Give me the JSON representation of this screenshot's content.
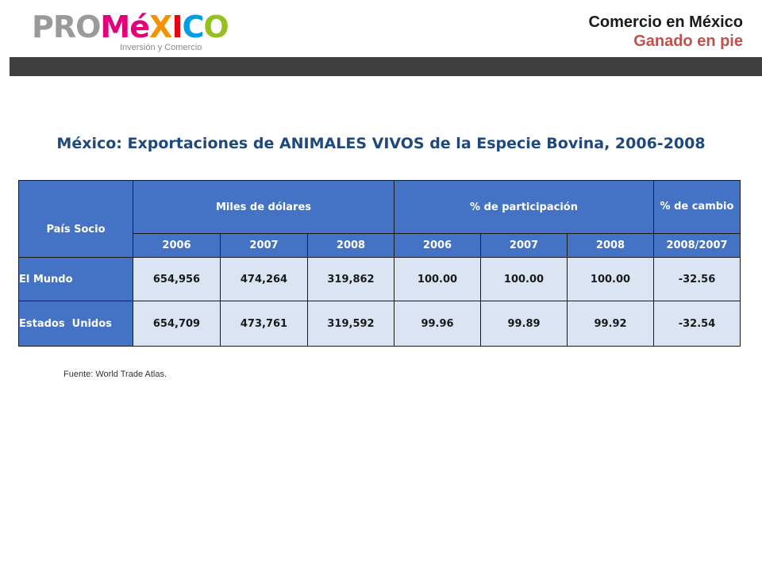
{
  "logo": {
    "pro": "PRO",
    "m": "M",
    "e": "é",
    "x": "X",
    "i": "I",
    "c": "C",
    "o": "O",
    "tagline": "Inversión y Comercio"
  },
  "header": {
    "title": "Comercio en México",
    "subtitle": "Ganado en pie"
  },
  "doc_title": "México: Exportaciones de ANIMALES VIVOS de la Especie Bovina, 2006-2008",
  "table": {
    "col_pais": "País Socio",
    "group_miles": "Miles de dólares",
    "group_part": "% de participación",
    "group_cambio": "% de cambio",
    "years": [
      "2006",
      "2007",
      "2008"
    ],
    "cambio_period": "2008/2007",
    "rows": [
      {
        "pais": "El Mundo",
        "values": [
          "654,956",
          "474,264",
          "319,862",
          "100.00",
          "100.00",
          "100.00",
          "-32.56"
        ]
      },
      {
        "pais": "Estados  Unidos",
        "values": [
          "654,709",
          "473,761",
          "319,592",
          "99.96",
          "99.89",
          "99.92",
          "-32.54"
        ]
      }
    ]
  },
  "source": "Fuente: World Trade Atlas."
}
